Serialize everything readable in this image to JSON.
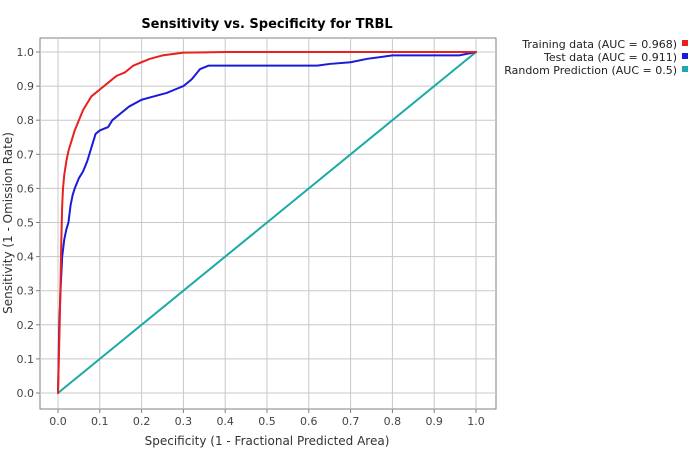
{
  "chart_data": {
    "type": "line",
    "title": "Sensitivity vs. Specificity for TRBL",
    "xlabel": "Specificity  (1 - Fractional Predicted Area)",
    "ylabel": "Sensitivity  (1 - Omission Rate)",
    "xlim": [
      0,
      1
    ],
    "ylim": [
      0,
      1
    ],
    "x_ticks": [
      "0.0",
      "0.1",
      "0.2",
      "0.3",
      "0.4",
      "0.5",
      "0.6",
      "0.7",
      "0.8",
      "0.9",
      "1.0"
    ],
    "y_ticks": [
      "0.0",
      "0.1",
      "0.2",
      "0.3",
      "0.4",
      "0.5",
      "0.6",
      "0.7",
      "0.8",
      "0.9",
      "1.0"
    ],
    "grid": true,
    "legend_position": "top-right outside",
    "series": [
      {
        "name": "Training data (AUC = 0.968)",
        "color": "#e8201e",
        "x": [
          0,
          0.002,
          0.004,
          0.006,
          0.008,
          0.01,
          0.012,
          0.015,
          0.02,
          0.025,
          0.03,
          0.035,
          0.04,
          0.05,
          0.06,
          0.07,
          0.08,
          0.09,
          0.1,
          0.11,
          0.12,
          0.14,
          0.16,
          0.18,
          0.2,
          0.22,
          0.25,
          0.28,
          0.3,
          0.35,
          0.4,
          0.5,
          0.6,
          0.7,
          0.8,
          0.9,
          1.0
        ],
        "y": [
          0,
          0.1,
          0.2,
          0.32,
          0.45,
          0.55,
          0.6,
          0.64,
          0.68,
          0.71,
          0.73,
          0.75,
          0.77,
          0.8,
          0.83,
          0.85,
          0.87,
          0.88,
          0.89,
          0.9,
          0.91,
          0.93,
          0.94,
          0.96,
          0.97,
          0.98,
          0.99,
          0.995,
          0.998,
          0.999,
          1.0,
          1.0,
          1.0,
          1.0,
          1.0,
          1.0,
          1.0
        ]
      },
      {
        "name": "Test data (AUC = 0.911)",
        "color": "#1a1ad9",
        "x": [
          0,
          0.003,
          0.006,
          0.01,
          0.015,
          0.02,
          0.025,
          0.03,
          0.035,
          0.04,
          0.05,
          0.06,
          0.07,
          0.08,
          0.09,
          0.1,
          0.12,
          0.13,
          0.15,
          0.17,
          0.2,
          0.23,
          0.26,
          0.28,
          0.3,
          0.32,
          0.34,
          0.36,
          0.4,
          0.5,
          0.55,
          0.6,
          0.62,
          0.65,
          0.7,
          0.74,
          0.8,
          0.9,
          0.96,
          1.0
        ],
        "y": [
          0,
          0.2,
          0.3,
          0.4,
          0.45,
          0.48,
          0.5,
          0.55,
          0.58,
          0.6,
          0.63,
          0.65,
          0.68,
          0.72,
          0.76,
          0.77,
          0.78,
          0.8,
          0.82,
          0.84,
          0.86,
          0.87,
          0.88,
          0.89,
          0.9,
          0.92,
          0.95,
          0.96,
          0.96,
          0.96,
          0.96,
          0.96,
          0.96,
          0.965,
          0.97,
          0.98,
          0.99,
          0.99,
          0.99,
          1.0
        ]
      },
      {
        "name": "Random Prediction (AUC = 0.5)",
        "color": "#1aaaa8",
        "x": [
          0,
          1
        ],
        "y": [
          0,
          1
        ]
      }
    ]
  }
}
